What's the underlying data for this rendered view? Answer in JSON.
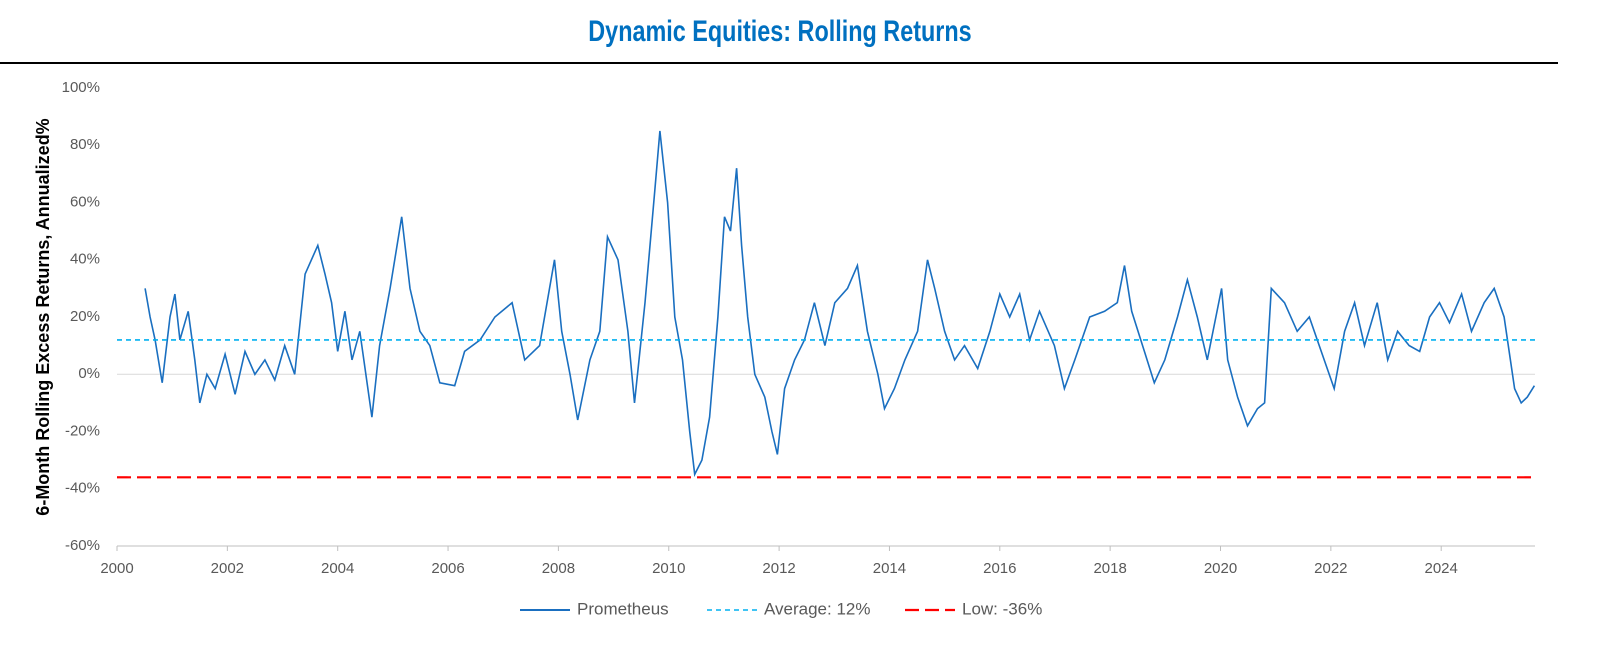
{
  "chart_data": {
    "type": "line",
    "title": "Dynamic Equities: Rolling Returns",
    "y_label": "6-Month Rolling Excess Returns, Annualized%",
    "x": [
      2000.51,
      2000.6,
      2000.69,
      2000.82,
      2000.96,
      2001.05,
      2001.14,
      2001.29,
      2001.41,
      2001.5,
      2001.63,
      2001.78,
      2001.96,
      2002.14,
      2002.32,
      2002.5,
      2002.68,
      2002.86,
      2003.04,
      2003.22,
      2003.41,
      2003.64,
      2003.77,
      2003.89,
      2004.0,
      2004.13,
      2004.26,
      2004.4,
      2004.62,
      2004.76,
      2004.95,
      2005.16,
      2005.31,
      2005.49,
      2005.67,
      2005.85,
      2006.12,
      2006.3,
      2006.58,
      2006.85,
      2007.16,
      2007.39,
      2007.66,
      2007.93,
      2008.06,
      2008.21,
      2008.35,
      2008.57,
      2008.75,
      2008.89,
      2009.08,
      2009.26,
      2009.38,
      2009.57,
      2009.75,
      2009.84,
      2009.98,
      2010.11,
      2010.25,
      2010.38,
      2010.47,
      2010.6,
      2010.74,
      2010.89,
      2011.01,
      2011.12,
      2011.23,
      2011.32,
      2011.43,
      2011.56,
      2011.74,
      2011.87,
      2011.97,
      2012.1,
      2012.28,
      2012.46,
      2012.64,
      2012.83,
      2013.01,
      2013.24,
      2013.42,
      2013.6,
      2013.79,
      2013.91,
      2014.09,
      2014.28,
      2014.51,
      2014.69,
      2014.82,
      2015.0,
      2015.18,
      2015.36,
      2015.6,
      2015.82,
      2016.0,
      2016.18,
      2016.36,
      2016.54,
      2016.72,
      2016.99,
      2017.17,
      2017.36,
      2017.63,
      2017.9,
      2018.13,
      2018.26,
      2018.39,
      2018.62,
      2018.8,
      2018.99,
      2019.22,
      2019.4,
      2019.58,
      2019.76,
      2020.02,
      2020.13,
      2020.31,
      2020.49,
      2020.67,
      2020.8,
      2020.92,
      2021.16,
      2021.39,
      2021.61,
      2021.88,
      2022.06,
      2022.25,
      2022.43,
      2022.61,
      2022.84,
      2023.03,
      2023.21,
      2023.42,
      2023.61,
      2023.79,
      2023.97,
      2024.15,
      2024.37,
      2024.55,
      2024.78,
      2024.96,
      2025.14,
      2025.33,
      2025.45,
      2025.56,
      2025.69
    ],
    "series": [
      {
        "name": "Prometheus",
        "color": "#1a6fc0",
        "values": [
          30,
          20,
          12,
          -3,
          20,
          28,
          12,
          22,
          5,
          -10,
          0,
          -5,
          7,
          -7,
          8,
          0,
          5,
          -2,
          10,
          0,
          35,
          45,
          35,
          25,
          8,
          22,
          5,
          15,
          -15,
          10,
          30,
          55,
          30,
          15,
          10,
          -3,
          -4,
          8,
          12,
          20,
          25,
          5,
          10,
          40,
          15,
          0,
          -16,
          5,
          15,
          48,
          40,
          15,
          -10,
          25,
          65,
          85,
          60,
          20,
          5,
          -20,
          -35,
          -30,
          -15,
          20,
          55,
          50,
          72,
          45,
          20,
          0,
          -8,
          -20,
          -28,
          -5,
          5,
          12,
          25,
          10,
          25,
          30,
          38,
          15,
          0,
          -12,
          -5,
          5,
          15,
          40,
          30,
          15,
          5,
          10,
          2,
          15,
          28,
          20,
          28,
          12,
          22,
          10,
          -5,
          5,
          20,
          22,
          25,
          38,
          22,
          8,
          -3,
          5,
          20,
          33,
          20,
          5,
          30,
          5,
          -8,
          -18,
          -12,
          -10,
          30,
          25,
          15,
          20,
          5,
          -5,
          15,
          25,
          10,
          25,
          5,
          15,
          10,
          8,
          20,
          25,
          18,
          28,
          15,
          25,
          30,
          20,
          -5,
          -10,
          -8,
          -4
        ]
      }
    ],
    "ref_lines": [
      {
        "name": "Average: 12%",
        "value": 12,
        "color": "#00b0f0"
      },
      {
        "name": "Low: -36%",
        "value": -36,
        "color": "#ff0000"
      }
    ],
    "xlim": [
      2000,
      2025.7
    ],
    "xticks": [
      2000,
      2002,
      2004,
      2006,
      2008,
      2010,
      2012,
      2014,
      2016,
      2018,
      2020,
      2022,
      2024
    ],
    "ylim": [
      -60,
      100
    ],
    "yticks": [
      {
        "value": -60,
        "label": "-60%"
      },
      {
        "value": -40,
        "label": "-40%"
      },
      {
        "value": -20,
        "label": "-20%"
      },
      {
        "value": 0,
        "label": "0%"
      },
      {
        "value": 20,
        "label": "20%"
      },
      {
        "value": 40,
        "label": "40%"
      },
      {
        "value": 60,
        "label": "60%"
      },
      {
        "value": 80,
        "label": "80%"
      },
      {
        "value": 100,
        "label": "100%"
      }
    ],
    "legend": "bottom"
  }
}
